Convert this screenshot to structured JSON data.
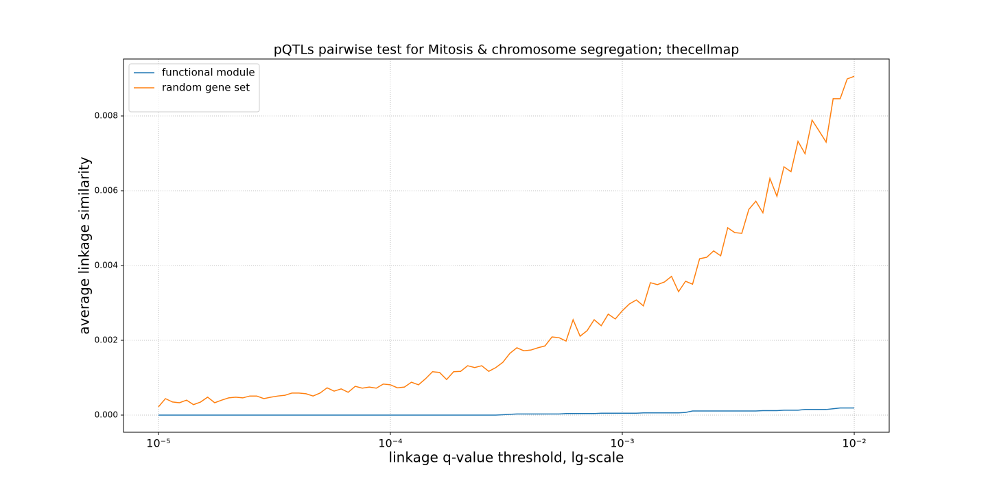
{
  "chart_data": {
    "type": "line",
    "title": "pQTLs pairwise test for Mitosis & chromosome segregation; thecellmap",
    "xlabel": "linkage q-value threshold, lg-scale",
    "ylabel": "average linkage similarity",
    "xscale": "log",
    "grid": true,
    "legend": "upper left",
    "xlim": [
      7.07e-06,
      0.01415
    ],
    "ylim": [
      -0.000459,
      0.009523
    ],
    "xticks": [
      {
        "value": 1e-05,
        "label": "10⁻⁵"
      },
      {
        "value": 0.0001,
        "label": "10⁻⁴"
      },
      {
        "value": 0.001,
        "label": "10⁻³"
      },
      {
        "value": 0.01,
        "label": "10⁻²"
      }
    ],
    "yticks": [
      {
        "value": 0,
        "label": "0.000"
      },
      {
        "value": 0.002,
        "label": "0.002"
      },
      {
        "value": 0.004,
        "label": "0.004"
      },
      {
        "value": 0.006,
        "label": "0.006"
      },
      {
        "value": 0.008,
        "label": "0.008"
      }
    ],
    "x": [
      1e-05,
      1.072e-05,
      1.15e-05,
      1.233e-05,
      1.322e-05,
      1.417e-05,
      1.52e-05,
      1.63e-05,
      1.748e-05,
      1.874e-05,
      2.009e-05,
      2.154e-05,
      2.31e-05,
      2.477e-05,
      2.656e-05,
      2.848e-05,
      3.054e-05,
      3.275e-05,
      3.511e-05,
      3.765e-05,
      4.037e-05,
      4.329e-05,
      4.642e-05,
      4.977e-05,
      5.337e-05,
      5.722e-05,
      6.136e-05,
      6.579e-05,
      7.055e-05,
      7.565e-05,
      8.111e-05,
      8.697e-05,
      9.326e-05,
      0.0001,
      0.0001072,
      0.000115,
      0.0001233,
      0.0001322,
      0.0001417,
      0.000152,
      0.000163,
      0.0001748,
      0.0001874,
      0.0002009,
      0.0002154,
      0.000231,
      0.0002477,
      0.0002656,
      0.0002848,
      0.0003054,
      0.0003275,
      0.0003511,
      0.0003765,
      0.0004037,
      0.0004329,
      0.0004642,
      0.0004977,
      0.0005337,
      0.0005722,
      0.0006136,
      0.0006579,
      0.0007055,
      0.0007565,
      0.0008111,
      0.0008697,
      0.0009326,
      0.001,
      0.001072,
      0.00115,
      0.001233,
      0.001322,
      0.001417,
      0.00152,
      0.00163,
      0.001748,
      0.001874,
      0.002009,
      0.002154,
      0.00231,
      0.002477,
      0.002656,
      0.002848,
      0.003054,
      0.003275,
      0.003511,
      0.003765,
      0.004037,
      0.004329,
      0.004642,
      0.004977,
      0.005337,
      0.005722,
      0.006136,
      0.006579,
      0.007055,
      0.007565,
      0.008111,
      0.008697,
      0.009326,
      0.01
    ],
    "series": [
      {
        "name": "functional module",
        "color": "#1f77b4",
        "values": [
          0,
          0,
          0,
          0,
          0,
          0,
          0,
          0,
          0,
          0,
          0,
          0,
          0,
          0,
          0,
          0,
          0,
          0,
          0,
          0,
          0,
          0,
          0,
          0,
          0,
          0,
          0,
          0,
          0,
          0,
          0,
          0,
          0,
          0,
          0,
          0,
          0,
          0,
          0,
          0,
          0,
          0,
          0,
          0,
          0,
          0,
          0,
          0,
          0,
          1e-05,
          2e-05,
          3e-05,
          3e-05,
          3e-05,
          3e-05,
          3e-05,
          3e-05,
          3e-05,
          4e-05,
          4e-05,
          4e-05,
          4e-05,
          4e-05,
          5e-05,
          5e-05,
          5e-05,
          5e-05,
          5e-05,
          5e-05,
          6e-05,
          6e-05,
          6e-05,
          6e-05,
          6e-05,
          6e-05,
          7e-05,
          0.00011,
          0.00011,
          0.00011,
          0.00011,
          0.00011,
          0.00011,
          0.00011,
          0.00011,
          0.00011,
          0.00011,
          0.00012,
          0.00012,
          0.00012,
          0.00013,
          0.00013,
          0.00013,
          0.00015,
          0.00015,
          0.00015,
          0.00015,
          0.00017,
          0.00019,
          0.00019,
          0.00019
        ]
      },
      {
        "name": "random gene set",
        "color": "#ff7f0e",
        "values": [
          0.00022,
          0.00044,
          0.00035,
          0.00033,
          0.0004,
          0.00028,
          0.00035,
          0.00048,
          0.00033,
          0.0004,
          0.00046,
          0.00048,
          0.00046,
          0.00051,
          0.00051,
          0.00044,
          0.00048,
          0.00051,
          0.00053,
          0.00059,
          0.00059,
          0.00057,
          0.00051,
          0.00059,
          0.00073,
          0.00064,
          0.0007,
          0.00061,
          0.00077,
          0.00072,
          0.00075,
          0.00072,
          0.00083,
          0.00081,
          0.00073,
          0.00075,
          0.00088,
          0.00081,
          0.00097,
          0.00116,
          0.00114,
          0.00095,
          0.00116,
          0.00117,
          0.00132,
          0.00127,
          0.00132,
          0.00117,
          0.00127,
          0.00141,
          0.00165,
          0.0018,
          0.00172,
          0.00174,
          0.0018,
          0.00185,
          0.00209,
          0.00207,
          0.00198,
          0.00255,
          0.00211,
          0.00226,
          0.00255,
          0.00239,
          0.0027,
          0.00257,
          0.00279,
          0.00297,
          0.00308,
          0.00292,
          0.00354,
          0.00349,
          0.00356,
          0.00371,
          0.0033,
          0.00358,
          0.0035,
          0.00418,
          0.00422,
          0.00439,
          0.00426,
          0.00501,
          0.00488,
          0.00486,
          0.0055,
          0.00572,
          0.00541,
          0.00633,
          0.00585,
          0.00664,
          0.00651,
          0.00732,
          0.00699,
          0.00789,
          0.0076,
          0.0073,
          0.00846,
          0.00846,
          0.00899,
          0.00906
        ]
      }
    ]
  }
}
